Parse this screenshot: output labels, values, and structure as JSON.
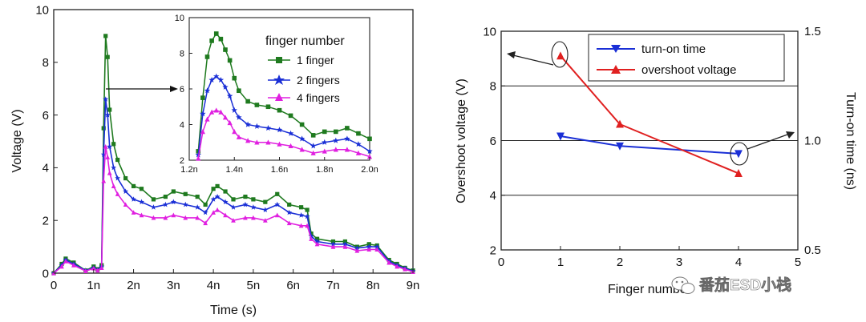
{
  "chart_data": [
    {
      "type": "line",
      "xlabel": "Time (s)",
      "ylabel": "Voltage (V)",
      "xlim": [
        0,
        9
      ],
      "ylim": [
        0,
        10
      ],
      "xticks": [
        0,
        1,
        2,
        3,
        4,
        5,
        6,
        7,
        8,
        9
      ],
      "xtick_labels": [
        "0",
        "1n",
        "2n",
        "3n",
        "4n",
        "5n",
        "6n",
        "7n",
        "8n",
        "9n"
      ],
      "yticks": [
        0,
        2,
        4,
        6,
        8,
        10
      ],
      "ytick_labels": [
        "0",
        "2",
        "4",
        "6",
        "8",
        "10"
      ],
      "legend_title": "finger number",
      "series": [
        {
          "name": "1 finger",
          "color": "#1f7a1f",
          "marker": "square",
          "x": [
            0,
            0.2,
            0.3,
            0.5,
            0.8,
            1.0,
            1.1,
            1.2,
            1.25,
            1.3,
            1.35,
            1.4,
            1.5,
            1.6,
            1.8,
            2.0,
            2.2,
            2.5,
            2.8,
            3.0,
            3.3,
            3.6,
            3.8,
            4.0,
            4.1,
            4.3,
            4.5,
            4.8,
            5.0,
            5.3,
            5.6,
            5.9,
            6.2,
            6.35,
            6.45,
            6.6,
            7.0,
            7.3,
            7.6,
            7.9,
            8.1,
            8.4,
            8.6,
            8.8,
            9.0
          ],
          "y": [
            0,
            0.35,
            0.55,
            0.4,
            0.1,
            0.25,
            0.15,
            0.3,
            5.5,
            9.0,
            8.2,
            6.2,
            4.9,
            4.3,
            3.6,
            3.3,
            3.2,
            2.8,
            2.9,
            3.1,
            3.0,
            2.9,
            2.6,
            3.2,
            3.3,
            3.1,
            2.8,
            2.9,
            2.8,
            2.7,
            3.0,
            2.6,
            2.5,
            2.4,
            1.5,
            1.3,
            1.2,
            1.2,
            1.0,
            1.1,
            1.05,
            0.5,
            0.35,
            0.2,
            0.1
          ]
        },
        {
          "name": "2 fingers",
          "color": "#1a2fd6",
          "marker": "star",
          "x": [
            0,
            0.2,
            0.3,
            0.5,
            0.8,
            1.0,
            1.1,
            1.2,
            1.25,
            1.3,
            1.35,
            1.4,
            1.5,
            1.6,
            1.8,
            2.0,
            2.2,
            2.5,
            2.8,
            3.0,
            3.3,
            3.6,
            3.8,
            4.0,
            4.1,
            4.3,
            4.5,
            4.8,
            5.0,
            5.3,
            5.6,
            5.9,
            6.2,
            6.35,
            6.45,
            6.6,
            7.0,
            7.3,
            7.6,
            7.9,
            8.1,
            8.4,
            8.6,
            8.8,
            9.0
          ],
          "y": [
            0,
            0.3,
            0.5,
            0.35,
            0.1,
            0.2,
            0.12,
            0.25,
            4.5,
            6.6,
            6.0,
            4.8,
            4.0,
            3.6,
            3.1,
            2.8,
            2.7,
            2.5,
            2.6,
            2.7,
            2.6,
            2.5,
            2.3,
            2.8,
            2.9,
            2.7,
            2.5,
            2.6,
            2.5,
            2.4,
            2.6,
            2.3,
            2.2,
            2.15,
            1.4,
            1.2,
            1.1,
            1.1,
            0.95,
            1.0,
            1.0,
            0.45,
            0.3,
            0.18,
            0.08
          ]
        },
        {
          "name": "4 fingers",
          "color": "#e020e0",
          "marker": "triangle",
          "x": [
            0,
            0.2,
            0.3,
            0.5,
            0.8,
            1.0,
            1.1,
            1.2,
            1.25,
            1.3,
            1.35,
            1.4,
            1.5,
            1.6,
            1.8,
            2.0,
            2.2,
            2.5,
            2.8,
            3.0,
            3.3,
            3.6,
            3.8,
            4.0,
            4.1,
            4.3,
            4.5,
            4.8,
            5.0,
            5.3,
            5.6,
            5.9,
            6.2,
            6.35,
            6.45,
            6.6,
            7.0,
            7.3,
            7.6,
            7.9,
            8.1,
            8.4,
            8.6,
            8.8,
            9.0
          ],
          "y": [
            0,
            0.25,
            0.45,
            0.3,
            0.08,
            0.18,
            0.1,
            0.2,
            3.5,
            4.8,
            4.4,
            3.8,
            3.3,
            3.0,
            2.6,
            2.3,
            2.2,
            2.1,
            2.1,
            2.2,
            2.1,
            2.1,
            1.9,
            2.3,
            2.4,
            2.2,
            2.0,
            2.1,
            2.1,
            2.0,
            2.2,
            1.9,
            1.8,
            1.8,
            1.3,
            1.1,
            1.0,
            1.0,
            0.85,
            0.9,
            0.9,
            0.4,
            0.25,
            0.15,
            0.05
          ]
        }
      ],
      "inset": {
        "xlim": [
          1.2,
          2.0
        ],
        "ylim": [
          2,
          10
        ],
        "xticks": [
          1.2,
          1.4,
          1.6,
          1.8,
          2.0
        ],
        "xtick_labels": [
          "1.2n",
          "1.4n",
          "1.6n",
          "1.8n",
          "2.0n"
        ],
        "yticks": [
          2,
          4,
          6,
          8,
          10
        ],
        "ytick_labels": [
          "2",
          "4",
          "6",
          "8",
          "10"
        ],
        "series": [
          {
            "name": "1 finger",
            "color": "#1f7a1f",
            "marker": "square",
            "x": [
              1.24,
              1.26,
              1.28,
              1.3,
              1.32,
              1.34,
              1.36,
              1.38,
              1.4,
              1.42,
              1.46,
              1.5,
              1.55,
              1.6,
              1.65,
              1.7,
              1.75,
              1.8,
              1.85,
              1.9,
              1.95,
              2.0
            ],
            "y": [
              2.5,
              5.5,
              7.8,
              8.7,
              9.1,
              8.8,
              8.2,
              7.6,
              6.6,
              5.9,
              5.3,
              5.1,
              5.0,
              4.8,
              4.5,
              4.0,
              3.4,
              3.6,
              3.6,
              3.8,
              3.5,
              3.2
            ]
          },
          {
            "name": "2 fingers",
            "color": "#1a2fd6",
            "marker": "star",
            "x": [
              1.24,
              1.26,
              1.28,
              1.3,
              1.32,
              1.34,
              1.36,
              1.38,
              1.4,
              1.42,
              1.46,
              1.5,
              1.55,
              1.6,
              1.65,
              1.7,
              1.75,
              1.8,
              1.85,
              1.9,
              1.95,
              2.0
            ],
            "y": [
              2.3,
              4.6,
              5.9,
              6.5,
              6.7,
              6.5,
              6.1,
              5.6,
              4.8,
              4.4,
              4.0,
              3.9,
              3.8,
              3.7,
              3.5,
              3.2,
              2.8,
              3.0,
              3.1,
              3.2,
              2.9,
              2.5
            ]
          },
          {
            "name": "4 fingers",
            "color": "#e020e0",
            "marker": "triangle",
            "x": [
              1.24,
              1.26,
              1.28,
              1.3,
              1.32,
              1.34,
              1.36,
              1.38,
              1.4,
              1.42,
              1.46,
              1.5,
              1.55,
              1.6,
              1.65,
              1.7,
              1.75,
              1.8,
              1.85,
              1.9,
              1.95,
              2.0
            ],
            "y": [
              2.1,
              3.6,
              4.3,
              4.7,
              4.8,
              4.7,
              4.4,
              4.1,
              3.6,
              3.3,
              3.1,
              3.0,
              3.0,
              2.9,
              2.8,
              2.6,
              2.4,
              2.5,
              2.6,
              2.6,
              2.4,
              2.2
            ]
          }
        ]
      }
    },
    {
      "type": "line",
      "xlabel": "Finger number",
      "ylabel": "Overshoot voltage (V)",
      "y2label": "Turn-on time (ns)",
      "xlim": [
        0,
        5
      ],
      "ylim": [
        2,
        10
      ],
      "y2lim": [
        0.5,
        1.5
      ],
      "xticks": [
        0,
        1,
        2,
        3,
        4,
        5
      ],
      "xtick_labels": [
        "0",
        "1",
        "2",
        "3",
        "4",
        "5"
      ],
      "yticks": [
        2,
        4,
        6,
        8,
        10
      ],
      "ytick_labels": [
        "2",
        "4",
        "6",
        "8",
        "10"
      ],
      "y2ticks": [
        0.5,
        1.0,
        1.5
      ],
      "y2tick_labels": [
        "0.5",
        "1.0",
        "1.5"
      ],
      "grid": true,
      "series": [
        {
          "name": "turn-on time",
          "color": "#1a2fd6",
          "marker": "triangle-down",
          "axis": "right",
          "x": [
            1,
            2,
            4
          ],
          "y": [
            1.02,
            0.975,
            0.94
          ]
        },
        {
          "name": "overshoot voltage",
          "color": "#e02020",
          "marker": "triangle",
          "axis": "left",
          "x": [
            1,
            2,
            4
          ],
          "y": [
            9.1,
            6.6,
            4.8
          ]
        }
      ]
    }
  ],
  "watermark": "番茄ESD小栈"
}
